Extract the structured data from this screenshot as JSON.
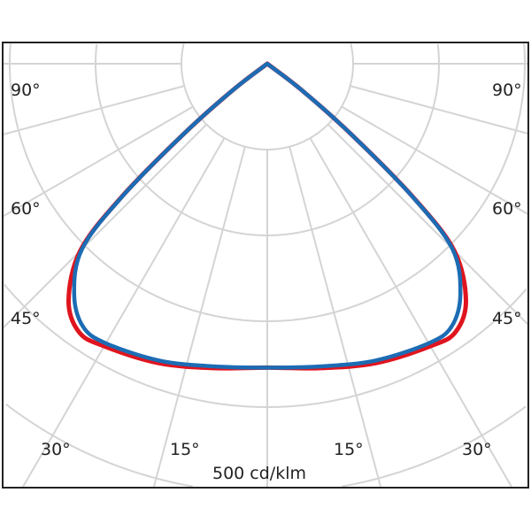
{
  "chart_data": {
    "type": "polar-line",
    "title": "",
    "scale_label": "500 cd/klm",
    "angle_labels": {
      "left": [
        "90°",
        "60°",
        "45°"
      ],
      "right": [
        "90°",
        "60°",
        "45°"
      ],
      "bottom": [
        "30°",
        "15°",
        "15°",
        "30°"
      ]
    },
    "angle_grid_step_deg": 15,
    "ring_values": [
      100,
      200,
      300,
      400,
      500
    ],
    "grid": true,
    "series": [
      {
        "color": "#e0141e",
        "angles": [
          0,
          10,
          20,
          30,
          35,
          40,
          45,
          47.5,
          50,
          52.5,
          55
        ],
        "values": [
          354,
          360,
          371,
          380,
          382,
          360,
          308,
          232,
          126,
          50,
          0
        ]
      },
      {
        "color": "#1c6cb4",
        "angles": [
          0,
          10,
          20,
          30,
          35,
          40,
          45,
          47.5,
          50,
          52.5,
          55
        ],
        "values": [
          354,
          358,
          368,
          376,
          374,
          350,
          305,
          230,
          125,
          50,
          0
        ]
      }
    ],
    "symmetric": true
  }
}
